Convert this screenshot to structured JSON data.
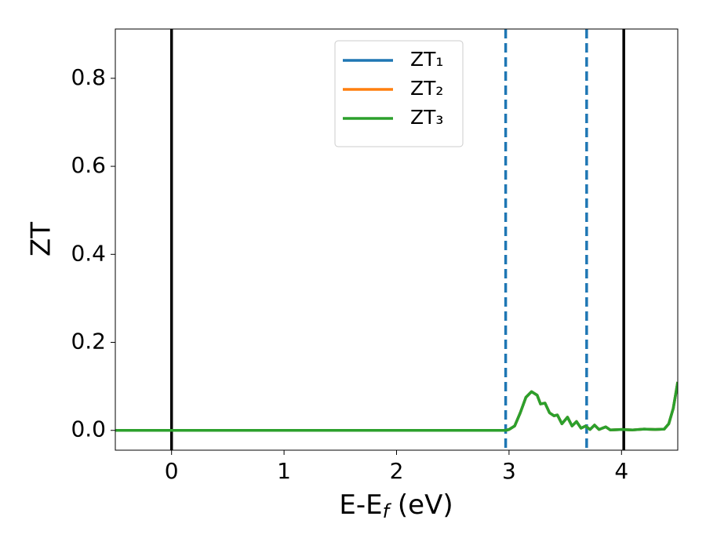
{
  "chart_data": {
    "type": "line",
    "xlabel": "E-Ef (eV)",
    "ylabel": "ZT",
    "xlim": [
      -0.5,
      4.5
    ],
    "ylim": [
      -0.045,
      0.912
    ],
    "xticks": [
      0,
      1,
      2,
      3,
      4
    ],
    "yticks": [
      {
        "value": 0,
        "label": "0.0"
      },
      {
        "value": 0.2,
        "label": "0.2"
      },
      {
        "value": 0.4,
        "label": "0.4"
      },
      {
        "value": 0.6,
        "label": "0.6"
      },
      {
        "value": 0.8,
        "label": "0.8"
      }
    ],
    "legend": "upper center",
    "vlines": [
      {
        "x": 0,
        "color": "#000000",
        "style": "solid"
      },
      {
        "x": 2.97,
        "color": "#1f77b4",
        "style": "dashed"
      },
      {
        "x": 3.69,
        "color": "#1f77b4",
        "style": "dashed"
      },
      {
        "x": 4.02,
        "color": "#000000",
        "style": "solid"
      }
    ],
    "x": [
      -0.5,
      0,
      1,
      2,
      2.97,
      3.0,
      3.05,
      3.1,
      3.15,
      3.2,
      3.25,
      3.28,
      3.32,
      3.36,
      3.4,
      3.43,
      3.47,
      3.52,
      3.56,
      3.6,
      3.64,
      3.68,
      3.72,
      3.76,
      3.8,
      3.86,
      3.9,
      4.0,
      4.1,
      4.2,
      4.3,
      4.38,
      4.42,
      4.46,
      4.5
    ],
    "series": [
      {
        "name": "ZT₁",
        "color": "#1f77b4",
        "values": [
          0,
          0,
          0,
          0,
          0,
          0.002,
          0.01,
          0.04,
          0.075,
          0.088,
          0.08,
          0.06,
          0.062,
          0.04,
          0.033,
          0.035,
          0.015,
          0.03,
          0.01,
          0.02,
          0.005,
          0.01,
          0.002,
          0.012,
          0.002,
          0.008,
          0.001,
          0.002,
          0.001,
          0.003,
          0.002,
          0.003,
          0.015,
          0.05,
          0.11
        ]
      },
      {
        "name": "ZT₂",
        "color": "#ff7f0e",
        "values": [
          0,
          0,
          0,
          0,
          0,
          0.002,
          0.01,
          0.04,
          0.075,
          0.088,
          0.08,
          0.06,
          0.062,
          0.04,
          0.033,
          0.035,
          0.015,
          0.03,
          0.01,
          0.02,
          0.005,
          0.01,
          0.002,
          0.012,
          0.002,
          0.008,
          0.001,
          0.002,
          0.001,
          0.003,
          0.002,
          0.003,
          0.015,
          0.05,
          0.11
        ]
      },
      {
        "name": "ZT₃",
        "color": "#2ca02c",
        "values": [
          0,
          0,
          0,
          0,
          0,
          0.002,
          0.01,
          0.04,
          0.075,
          0.088,
          0.08,
          0.06,
          0.062,
          0.04,
          0.033,
          0.035,
          0.015,
          0.03,
          0.01,
          0.02,
          0.005,
          0.01,
          0.002,
          0.012,
          0.002,
          0.008,
          0.001,
          0.002,
          0.001,
          0.003,
          0.002,
          0.003,
          0.015,
          0.05,
          0.11
        ]
      }
    ]
  }
}
